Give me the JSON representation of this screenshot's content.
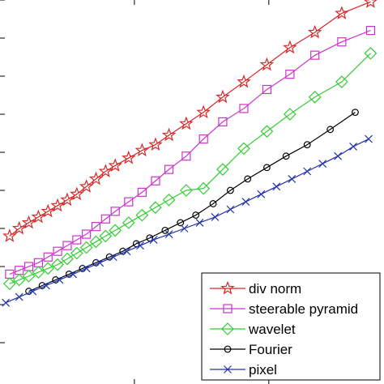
{
  "chart_data": {
    "type": "line",
    "title": "",
    "xlabel": "",
    "ylabel": "",
    "xlim": [
      0,
      20
    ],
    "ylim": [
      0,
      10
    ],
    "xticks": [
      7,
      14
    ],
    "yticks": [
      1,
      2,
      3,
      4,
      5,
      6,
      7,
      8,
      9,
      10
    ],
    "grid": false,
    "legend_position": "bottom-right",
    "series": [
      {
        "name": "div norm",
        "color": "#d62728",
        "marker": "star",
        "x": [
          0.5,
          1.0,
          1.5,
          2.0,
          2.5,
          3.0,
          3.5,
          4.0,
          4.5,
          5.0,
          5.5,
          6.0,
          6.7,
          7.4,
          8.1,
          8.8,
          9.7,
          10.6,
          11.6,
          12.7,
          13.9,
          15.1,
          16.4,
          17.8,
          19.3
        ],
        "y": [
          3.8,
          4.0,
          4.15,
          4.3,
          4.45,
          4.6,
          4.75,
          4.9,
          5.1,
          5.3,
          5.5,
          5.65,
          5.85,
          6.05,
          6.2,
          6.45,
          6.75,
          7.05,
          7.45,
          7.85,
          8.3,
          8.75,
          9.15,
          9.65,
          9.95
        ]
      },
      {
        "name": "steerable pyramid",
        "color": "#cc33cc",
        "marker": "square",
        "x": [
          0.5,
          1.0,
          1.5,
          2.0,
          2.5,
          3.0,
          3.5,
          4.0,
          4.5,
          5.0,
          5.5,
          6.0,
          6.7,
          7.4,
          8.1,
          8.8,
          9.7,
          10.6,
          11.6,
          12.7,
          13.9,
          15.1,
          16.4,
          17.8,
          19.3
        ],
        "y": [
          2.8,
          2.9,
          3.0,
          3.1,
          3.25,
          3.4,
          3.55,
          3.7,
          3.85,
          4.05,
          4.25,
          4.45,
          4.7,
          4.95,
          5.25,
          5.55,
          5.9,
          6.35,
          6.8,
          7.15,
          7.65,
          8.05,
          8.55,
          8.9,
          9.2
        ]
      },
      {
        "name": "wavelet",
        "color": "#33cc33",
        "marker": "diamond",
        "x": [
          0.5,
          1.0,
          1.5,
          2.0,
          2.5,
          3.0,
          3.5,
          4.0,
          4.5,
          5.0,
          5.5,
          6.0,
          6.7,
          7.4,
          8.1,
          8.8,
          9.7,
          10.6,
          11.6,
          12.7,
          13.9,
          15.1,
          16.4,
          17.8,
          19.3
        ],
        "y": [
          2.55,
          2.65,
          2.75,
          2.85,
          2.95,
          3.05,
          3.2,
          3.35,
          3.5,
          3.65,
          3.8,
          3.95,
          4.15,
          4.35,
          4.55,
          4.75,
          5.0,
          5.05,
          5.55,
          6.1,
          6.55,
          7.0,
          7.45,
          7.85,
          8.6
        ]
      },
      {
        "name": "Fourier",
        "color": "#000000",
        "marker": "circle",
        "x": [
          1.5,
          2.2,
          2.9,
          3.6,
          4.3,
          5.0,
          5.7,
          6.4,
          7.1,
          7.8,
          8.6,
          9.4,
          10.2,
          11.1,
          12.0,
          12.9,
          13.9,
          14.9,
          16.0,
          17.2,
          18.5
        ],
        "y": [
          2.35,
          2.5,
          2.65,
          2.8,
          2.95,
          3.1,
          3.25,
          3.4,
          3.6,
          3.75,
          3.95,
          4.15,
          4.35,
          4.65,
          5.0,
          5.3,
          5.6,
          5.9,
          6.2,
          6.6,
          7.05
        ]
      },
      {
        "name": "pixel",
        "color": "#2233aa",
        "marker": "x",
        "x": [
          0.3,
          1.0,
          1.7,
          2.4,
          3.1,
          3.8,
          4.5,
          5.2,
          5.9,
          6.6,
          7.3,
          8.0,
          8.8,
          9.6,
          10.4,
          11.2,
          12.0,
          12.8,
          13.6,
          14.4,
          15.2,
          16.0,
          16.8,
          17.6,
          18.4,
          19.2
        ],
        "y": [
          2.05,
          2.2,
          2.35,
          2.5,
          2.65,
          2.8,
          2.95,
          3.1,
          3.25,
          3.4,
          3.55,
          3.7,
          3.85,
          4.0,
          4.15,
          4.3,
          4.5,
          4.7,
          4.9,
          5.1,
          5.3,
          5.5,
          5.7,
          5.9,
          6.15,
          6.35
        ]
      }
    ]
  }
}
